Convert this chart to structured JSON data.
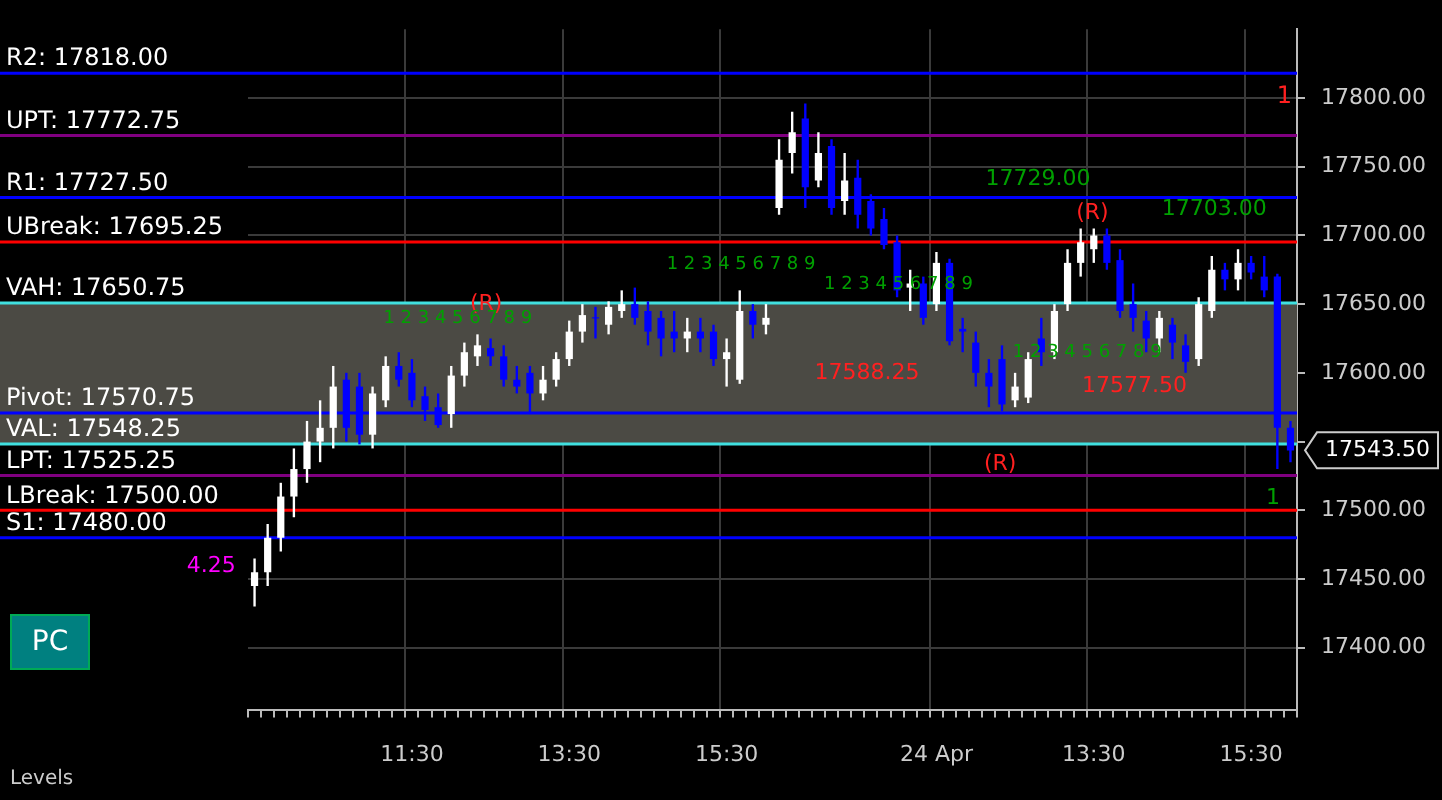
{
  "chart_data": {
    "type": "candlestick",
    "categories": [
      null,
      null,
      null,
      null,
      null,
      null,
      null,
      null,
      null,
      null,
      null,
      null,
      "11:30",
      null,
      null,
      null,
      null,
      null,
      null,
      null,
      null,
      null,
      null,
      null,
      "13:30",
      null,
      null,
      null,
      null,
      null,
      null,
      null,
      null,
      null,
      null,
      null,
      "15:30",
      null,
      null,
      null,
      null,
      null,
      null,
      null,
      null,
      null,
      null,
      null,
      null,
      null,
      null,
      null,
      "24 Apr",
      null,
      null,
      null,
      null,
      null,
      null,
      null,
      null,
      null,
      null,
      null,
      "13:30",
      null,
      null,
      null,
      null,
      null,
      null,
      null,
      null,
      null,
      null,
      null,
      "15:30",
      null,
      null,
      null
    ],
    "ohlc": [
      [
        17445,
        17465,
        17430,
        17455
      ],
      [
        17455,
        17490,
        17445,
        17480
      ],
      [
        17480,
        17520,
        17470,
        17510
      ],
      [
        17510,
        17545,
        17495,
        17530
      ],
      [
        17530,
        17565,
        17520,
        17550
      ],
      [
        17550,
        17580,
        17535,
        17560
      ],
      [
        17560,
        17605,
        17545,
        17590
      ],
      [
        17595,
        17600,
        17550,
        17560
      ],
      [
        17590,
        17600,
        17548,
        17555
      ],
      [
        17555,
        17590,
        17545,
        17585
      ],
      [
        17580,
        17612,
        17575,
        17605
      ],
      [
        17605,
        17615,
        17590,
        17595
      ],
      [
        17600,
        17610,
        17575,
        17580
      ],
      [
        17583,
        17590,
        17565,
        17573
      ],
      [
        17575,
        17585,
        17560,
        17562
      ],
      [
        17570,
        17605,
        17560,
        17598
      ],
      [
        17598,
        17622,
        17590,
        17615
      ],
      [
        17612,
        17628,
        17605,
        17620
      ],
      [
        17618,
        17625,
        17605,
        17612
      ],
      [
        17612,
        17620,
        17590,
        17595
      ],
      [
        17595,
        17605,
        17585,
        17590
      ],
      [
        17600,
        17605,
        17570,
        17585
      ],
      [
        17585,
        17605,
        17580,
        17595
      ],
      [
        17595,
        17615,
        17590,
        17610
      ],
      [
        17610,
        17638,
        17605,
        17630
      ],
      [
        17630,
        17650,
        17622,
        17642
      ],
      [
        17640,
        17648,
        17625,
        17640
      ],
      [
        17635,
        17652,
        17628,
        17648
      ],
      [
        17645,
        17660,
        17640,
        17650
      ],
      [
        17650,
        17662,
        17635,
        17640
      ],
      [
        17645,
        17652,
        17620,
        17630
      ],
      [
        17640,
        17645,
        17612,
        17625
      ],
      [
        17630,
        17645,
        17615,
        17625
      ],
      [
        17625,
        17640,
        17615,
        17630
      ],
      [
        17630,
        17640,
        17615,
        17625
      ],
      [
        17630,
        17635,
        17605,
        17610
      ],
      [
        17610,
        17625,
        17590,
        17615
      ],
      [
        17595,
        17660,
        17592,
        17645
      ],
      [
        17645,
        17650,
        17625,
        17635
      ],
      [
        17635,
        17650,
        17628,
        17640
      ],
      [
        17720,
        17770,
        17715,
        17755
      ],
      [
        17760,
        17790,
        17745,
        17775
      ],
      [
        17785,
        17796,
        17720,
        17735
      ],
      [
        17740,
        17775,
        17735,
        17760
      ],
      [
        17765,
        17770,
        17715,
        17720
      ],
      [
        17725,
        17760,
        17715,
        17740
      ],
      [
        17742,
        17755,
        17705,
        17715
      ],
      [
        17725,
        17730,
        17700,
        17705
      ],
      [
        17712,
        17720,
        17690,
        17693
      ],
      [
        17695,
        17700,
        17655,
        17660
      ],
      [
        17662,
        17675,
        17645,
        17665
      ],
      [
        17665,
        17670,
        17635,
        17640
      ],
      [
        17650,
        17688,
        17645,
        17680
      ],
      [
        17680,
        17683,
        17620,
        17623
      ],
      [
        17632,
        17640,
        17615,
        17630
      ],
      [
        17622,
        17630,
        17590,
        17600
      ],
      [
        17600,
        17610,
        17575,
        17590
      ],
      [
        17610,
        17620,
        17572,
        17577
      ],
      [
        17580,
        17600,
        17575,
        17590
      ],
      [
        17582,
        17615,
        17578,
        17610
      ],
      [
        17625,
        17640,
        17605,
        17615
      ],
      [
        17615,
        17650,
        17610,
        17645
      ],
      [
        17650,
        17690,
        17645,
        17680
      ],
      [
        17680,
        17705,
        17670,
        17695
      ],
      [
        17690,
        17705,
        17680,
        17700
      ],
      [
        17700,
        17705,
        17675,
        17680
      ],
      [
        17682,
        17690,
        17640,
        17645
      ],
      [
        17650,
        17665,
        17630,
        17640
      ],
      [
        17638,
        17645,
        17615,
        17625
      ],
      [
        17625,
        17645,
        17615,
        17640
      ],
      [
        17635,
        17640,
        17610,
        17622
      ],
      [
        17620,
        17628,
        17600,
        17608
      ],
      [
        17610,
        17655,
        17605,
        17650
      ],
      [
        17645,
        17685,
        17640,
        17675
      ],
      [
        17675,
        17680,
        17660,
        17668
      ],
      [
        17668,
        17690,
        17660,
        17680
      ],
      [
        17680,
        17685,
        17668,
        17673
      ],
      [
        17670,
        17685,
        17655,
        17660
      ],
      [
        17670,
        17672,
        17530,
        17560
      ],
      [
        17560,
        17565,
        17535,
        17543.5
      ]
    ],
    "colors": [
      "#ffffff",
      "#ffffff",
      "#ffffff",
      "#ffffff",
      "#ffffff",
      "#ffffff",
      "#ffffff",
      "#0000ff",
      "#0000ff",
      "#ffffff",
      "#ffffff",
      "#0000ff",
      "#0000ff",
      "#0000ff",
      "#0000ff",
      "#ffffff",
      "#ffffff",
      "#ffffff",
      "#0000ff",
      "#0000ff",
      "#0000ff",
      "#0000ff",
      "#ffffff",
      "#ffffff",
      "#ffffff",
      "#ffffff",
      "#0000ff",
      "#ffffff",
      "#ffffff",
      "#0000ff",
      "#0000ff",
      "#0000ff",
      "#0000ff",
      "#ffffff",
      "#0000ff",
      "#0000ff",
      "#ffffff",
      "#ffffff",
      "#0000ff",
      "#ffffff",
      "#ffffff",
      "#ffffff",
      "#0000ff",
      "#ffffff",
      "#0000ff",
      "#ffffff",
      "#0000ff",
      "#0000ff",
      "#0000ff",
      "#0000ff",
      "#ffffff",
      "#0000ff",
      "#ffffff",
      "#0000ff",
      "#0000ff",
      "#0000ff",
      "#0000ff",
      "#0000ff",
      "#ffffff",
      "#ffffff",
      "#0000ff",
      "#ffffff",
      "#ffffff",
      "#ffffff",
      "#ffffff",
      "#0000ff",
      "#0000ff",
      "#0000ff",
      "#0000ff",
      "#ffffff",
      "#0000ff",
      "#0000ff",
      "#ffffff",
      "#ffffff",
      "#0000ff",
      "#ffffff",
      "#0000ff",
      "#0000ff",
      "#0000ff",
      "#0000ff"
    ],
    "ylim": [
      17355,
      17850
    ],
    "yticks": [
      {
        "value": 17400,
        "label": "17400.00"
      },
      {
        "value": 17450,
        "label": "17450.00"
      },
      {
        "value": 17500,
        "label": "17500.00"
      },
      {
        "value": 17550,
        "label": null
      },
      {
        "value": 17600,
        "label": "17600.00"
      },
      {
        "value": 17650,
        "label": "17650.00"
      },
      {
        "value": 17700,
        "label": "17700.00"
      },
      {
        "value": 17750,
        "label": "17750.00"
      },
      {
        "value": 17800,
        "label": "17800.00"
      }
    ],
    "grid": true,
    "legend": false,
    "bands": [
      {
        "axis": "y",
        "from": 17548.25,
        "to": 17650.75,
        "color": "#4b4a44"
      }
    ],
    "ref_lines": [
      {
        "axis": "y",
        "value": 17818,
        "label": "R2: 17818.00",
        "color": "#0000ff"
      },
      {
        "axis": "y",
        "value": 17772.75,
        "label": "UPT: 17772.75",
        "color": "#800080"
      },
      {
        "axis": "y",
        "value": 17727.5,
        "label": "R1: 17727.50",
        "color": "#0000ff"
      },
      {
        "axis": "y",
        "value": 17695.25,
        "label": "UBreak: 17695.25",
        "color": "#ff0000"
      },
      {
        "axis": "y",
        "value": 17650.75,
        "label": "VAH: 17650.75",
        "color": "#40e0e0"
      },
      {
        "axis": "y",
        "value": 17570.75,
        "label": "Pivot: 17570.75",
        "color": "#0000ff"
      },
      {
        "axis": "y",
        "value": 17548.25,
        "label": "VAL: 17548.25",
        "color": "#40e0e0"
      },
      {
        "axis": "y",
        "value": 17525.25,
        "label": "LPT: 17525.25",
        "color": "#800080"
      },
      {
        "axis": "y",
        "value": 17500,
        "label": "LBreak: 17500.00",
        "color": "#ff0000"
      },
      {
        "axis": "y",
        "value": 17480,
        "label": "S1: 17480.00",
        "color": "#0000ff"
      }
    ],
    "annotations": [
      "(R)",
      "(R)",
      "(R)",
      "17729.00",
      "17703.00",
      "17588.25",
      "17577.50",
      "1",
      "1",
      "4.25",
      "17543.50",
      "1 2 3 4 5 6 7 8 9",
      "1 2 3 4 5 6 7 8 9",
      "1 2 3 4 5 6 7 8 9",
      "1 2 3 4 5 6 7 8 9",
      "PC",
      "Levels"
    ]
  }
}
